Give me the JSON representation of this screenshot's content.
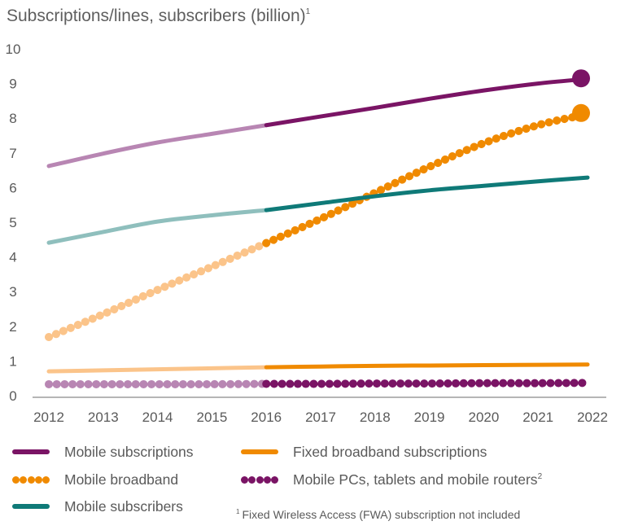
{
  "chart_data": {
    "type": "line",
    "title": "Subscriptions/lines, subscribers (billion)",
    "title_superscript": "1",
    "xlabel": "",
    "ylabel": "",
    "x": [
      2012,
      2013,
      2014,
      2015,
      2016,
      2017,
      2018,
      2019,
      2020,
      2021,
      2022
    ],
    "xtick_labels": [
      "2012",
      "2013",
      "2014",
      "2015",
      "2016",
      "2017",
      "2018",
      "2019",
      "2020",
      "2021",
      "2022"
    ],
    "ylim": [
      0,
      10
    ],
    "ytick_labels": [
      "0",
      "1",
      "2",
      "3",
      "4",
      "5",
      "6",
      "7",
      "8",
      "9",
      "10"
    ],
    "grid": false,
    "forecast_start": 2016,
    "series": [
      {
        "name": "Mobile subscriptions",
        "style": "solid",
        "color": "#7a1465",
        "color_historic": "#b886b3",
        "values": [
          6.62,
          6.98,
          7.3,
          7.55,
          7.8,
          8.05,
          8.3,
          8.56,
          8.8,
          9.0,
          9.15
        ],
        "end_marker": true
      },
      {
        "name": "Mobile broadband",
        "style": "dotted",
        "color": "#f08a00",
        "color_historic": "#fbc48a",
        "values": [
          1.69,
          2.35,
          3.05,
          3.72,
          4.4,
          5.1,
          5.85,
          6.6,
          7.28,
          7.8,
          8.15
        ],
        "end_marker": true
      },
      {
        "name": "Mobile subscribers",
        "style": "solid",
        "color": "#0f7a78",
        "color_historic": "#8fbfbd",
        "values": [
          4.41,
          4.72,
          5.02,
          5.2,
          5.35,
          5.55,
          5.75,
          5.92,
          6.05,
          6.18,
          6.3
        ],
        "end_marker": false
      },
      {
        "name": "Fixed broadband subscriptions",
        "style": "solid",
        "color": "#f08a00",
        "color_historic": "#fbc48a",
        "values": [
          0.7,
          0.73,
          0.76,
          0.79,
          0.82,
          0.84,
          0.86,
          0.87,
          0.88,
          0.89,
          0.9
        ],
        "end_marker": false
      },
      {
        "name": "Mobile PCs, tablets and mobile routers",
        "style": "dotted",
        "color": "#7a1465",
        "color_historic": "#b886b3",
        "values": [
          0.33,
          0.33,
          0.33,
          0.33,
          0.34,
          0.34,
          0.35,
          0.35,
          0.36,
          0.36,
          0.37
        ],
        "end_marker": false
      }
    ]
  },
  "legend": {
    "items": [
      {
        "label": "Mobile subscriptions",
        "style": "solid",
        "color": "#7a1465"
      },
      {
        "label": "Fixed broadband subscriptions",
        "style": "solid",
        "color": "#f08a00"
      },
      {
        "label": "Mobile broadband",
        "style": "dotted",
        "color": "#f08a00"
      },
      {
        "label": "Mobile PCs, tablets and mobile routers",
        "superscript": "2",
        "style": "dotted",
        "color": "#7a1465"
      },
      {
        "label": "Mobile subscribers",
        "style": "solid",
        "color": "#0f7a78"
      }
    ]
  },
  "footnote": {
    "marker": "1",
    "text": "Fixed Wireless Access (FWA) subscription not included"
  }
}
